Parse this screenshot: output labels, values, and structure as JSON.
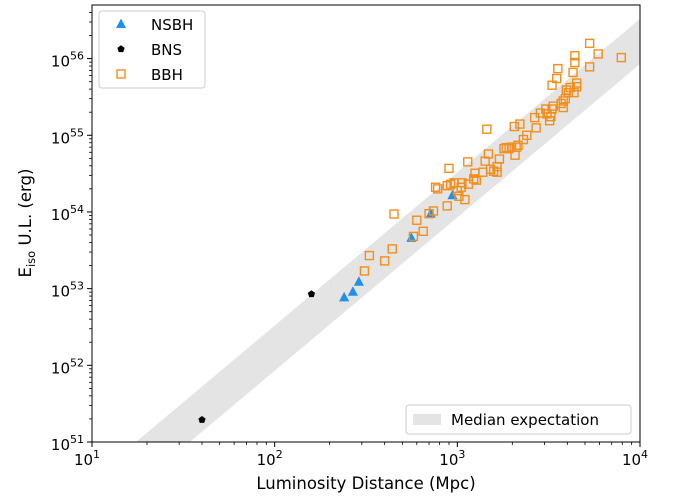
{
  "chart_data": {
    "type": "scatter",
    "xlabel": "Luminosity Distance (Mpc)",
    "ylabel_main": "E",
    "ylabel_sub": "iso",
    "ylabel_rest": " U.L. (erg)",
    "xscale": "log",
    "yscale": "log",
    "xlim": [
      10,
      10000
    ],
    "ylim": [
      1e+51,
      5e+56
    ],
    "grid": false,
    "legend_position": "top-left",
    "x_ticks": [
      {
        "value": 10,
        "base": "10",
        "exp": "1"
      },
      {
        "value": 100,
        "base": "10",
        "exp": "2"
      },
      {
        "value": 1000,
        "base": "10",
        "exp": "3"
      },
      {
        "value": 10000,
        "base": "10",
        "exp": "4"
      }
    ],
    "y_ticks": [
      {
        "value": 1e+51,
        "base": "10",
        "exp": "51"
      },
      {
        "value": 1e+52,
        "base": "10",
        "exp": "52"
      },
      {
        "value": 1e+53,
        "base": "10",
        "exp": "53"
      },
      {
        "value": 1e+54,
        "base": "10",
        "exp": "54"
      },
      {
        "value": 1e+55,
        "base": "10",
        "exp": "55"
      },
      {
        "value": 1e+56,
        "base": "10",
        "exp": "56"
      }
    ],
    "band": {
      "name": "Median expectation",
      "color": "#e4e4e4",
      "lower_at_x10": 8.5e+49,
      "upper_at_x10": 3.3e+50,
      "slope": 2
    },
    "series": [
      {
        "name": "NSBH",
        "marker": "triangle",
        "color": "#1f8ff0",
        "points": [
          [
            240,
            7.7e+52
          ],
          [
            268,
            9.1e+52
          ],
          [
            289,
            1.23e+53
          ],
          [
            560,
            4.6e+53
          ],
          [
            715,
            9.5e+53
          ],
          [
            940,
            1.65e+54
          ]
        ]
      },
      {
        "name": "BNS",
        "marker": "pentagon",
        "color": "#000000",
        "points": [
          [
            40,
            1.95e+51
          ],
          [
            159,
            8.5e+52
          ]
        ]
      },
      {
        "name": "BBH",
        "marker": "square",
        "color": "#f28e1c",
        "points": [
          [
            310,
            1.7e+53
          ],
          [
            330,
            2.7e+53
          ],
          [
            400,
            2.3e+53
          ],
          [
            440,
            3.3e+53
          ],
          [
            450,
            9.4e+53
          ],
          [
            575,
            4.8e+53
          ],
          [
            600,
            7.8e+53
          ],
          [
            650,
            5.6e+53
          ],
          [
            700,
            9.5e+53
          ],
          [
            740,
            1.03e+54
          ],
          [
            760,
            2.1e+54
          ],
          [
            780,
            2e+54
          ],
          [
            880,
            1.2e+54
          ],
          [
            880,
            2.2e+54
          ],
          [
            900,
            3.7e+54
          ],
          [
            920,
            2.3e+54
          ],
          [
            960,
            2.4e+54
          ],
          [
            1000,
            1.9e+54
          ],
          [
            1020,
            1.6e+54
          ],
          [
            1050,
            2.1e+54
          ],
          [
            1060,
            2.4e+54
          ],
          [
            1100,
            1.45e+54
          ],
          [
            1140,
            4.5e+54
          ],
          [
            1150,
            2.3e+54
          ],
          [
            1230,
            2.7e+54
          ],
          [
            1250,
            3.2e+54
          ],
          [
            1270,
            2.6e+54
          ],
          [
            1380,
            3.3e+54
          ],
          [
            1420,
            4.6e+54
          ],
          [
            1450,
            1.2e+55
          ],
          [
            1480,
            5.7e+54
          ],
          [
            1520,
            3.6e+54
          ],
          [
            1580,
            3.4e+54
          ],
          [
            1650,
            3.9e+54
          ],
          [
            1650,
            3.3e+54
          ],
          [
            1700,
            4.9e+54
          ],
          [
            1800,
            6.7e+54
          ],
          [
            1850,
            6.9e+54
          ],
          [
            1920,
            6.7e+54
          ],
          [
            1980,
            7e+54
          ],
          [
            2050,
            1.3e+55
          ],
          [
            2070,
            5.5e+54
          ],
          [
            2100,
            7e+54
          ],
          [
            2150,
            7.4e+54
          ],
          [
            2200,
            1.4e+55
          ],
          [
            2300,
            8.8e+54
          ],
          [
            2400,
            1e+55
          ],
          [
            2650,
            1.7e+55
          ],
          [
            2700,
            1.25e+55
          ],
          [
            2850,
            1.95e+55
          ],
          [
            3050,
            2.2e+55
          ],
          [
            3100,
            1.9e+55
          ],
          [
            3200,
            1.55e+55
          ],
          [
            3250,
            1.75e+55
          ],
          [
            3300,
            2.2e+55
          ],
          [
            3300,
            4.5e+55
          ],
          [
            3350,
            2.4e+55
          ],
          [
            3500,
            5.5e+55
          ],
          [
            3550,
            7.4e+55
          ],
          [
            3700,
            2.6e+55
          ],
          [
            3800,
            2.3e+55
          ],
          [
            3800,
            2.8e+55
          ],
          [
            3900,
            3e+55
          ],
          [
            3950,
            3.9e+55
          ],
          [
            4050,
            3.6e+55
          ],
          [
            4150,
            4.2e+55
          ],
          [
            4300,
            6.6e+55
          ],
          [
            4350,
            3.6e+55
          ],
          [
            4400,
            1.09e+56
          ],
          [
            4400,
            8.9e+55
          ],
          [
            4500,
            4.3e+55
          ],
          [
            4500,
            4.8e+55
          ],
          [
            5300,
            1.58e+56
          ],
          [
            5300,
            7.8e+55
          ],
          [
            5900,
            1.15e+56
          ],
          [
            7900,
            1.03e+56
          ]
        ]
      }
    ]
  }
}
